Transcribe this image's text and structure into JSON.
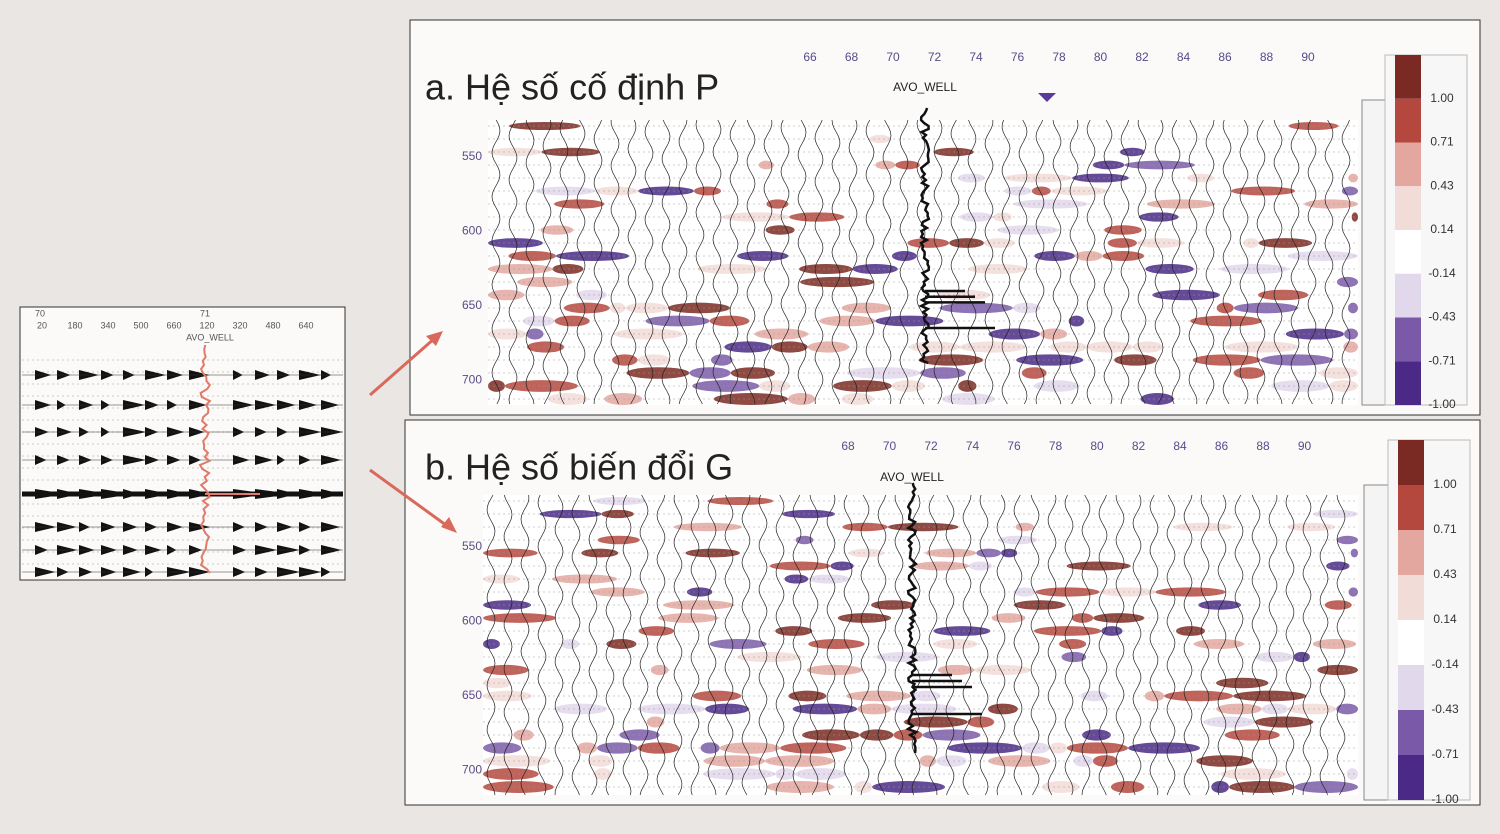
{
  "left_panel": {
    "top_labels": [
      "70",
      "71"
    ],
    "offset_labels": [
      "20",
      "180",
      "340",
      "500",
      "660",
      "120",
      "320",
      "480",
      "640"
    ],
    "well_label": "AVO_WELL"
  },
  "panel_a": {
    "title": "a. Hệ số cố định P",
    "x_labels": [
      "66",
      "68",
      "70",
      "72",
      "74",
      "76",
      "78",
      "80",
      "82",
      "84",
      "86",
      "88",
      "90"
    ],
    "well_label": "AVO_WELL",
    "depth_labels": [
      "550",
      "600",
      "650",
      "700"
    ],
    "colorbar_labels": [
      "1.00",
      "0.71",
      "0.43",
      "0.14",
      "-0.14",
      "-0.43",
      "-0.71",
      "-1.00"
    ]
  },
  "panel_b": {
    "title": "b. Hệ số biến đổi G",
    "x_labels": [
      "68",
      "70",
      "72",
      "74",
      "76",
      "78",
      "80",
      "82",
      "84",
      "86",
      "88",
      "90"
    ],
    "well_label": "AVO_WELL",
    "depth_labels": [
      "550",
      "600",
      "650",
      "700"
    ],
    "colorbar_labels": [
      "1.00",
      "0.71",
      "0.43",
      "0.14",
      "-0.14",
      "-0.43",
      "-0.71",
      "-1.00"
    ]
  }
}
